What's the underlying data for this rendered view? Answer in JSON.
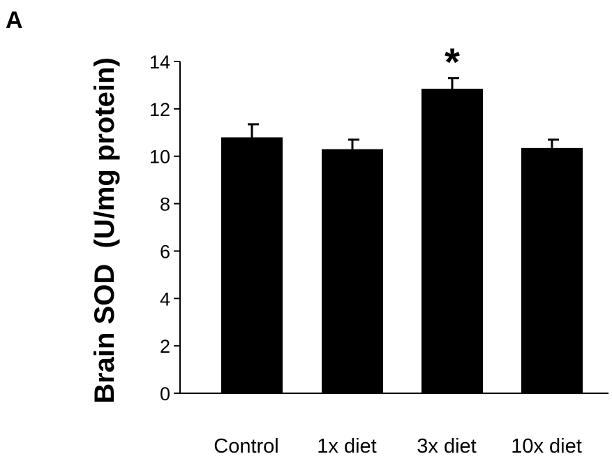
{
  "panel_label": "A",
  "chart_data": {
    "type": "bar",
    "title": "",
    "xlabel": "",
    "ylabel": "Brain SOD  (U/mg protein)",
    "categories": [
      "Control",
      "1x diet",
      "3x diet",
      "10x diet"
    ],
    "values": [
      10.8,
      10.3,
      12.85,
      10.35
    ],
    "error": [
      0.55,
      0.4,
      0.45,
      0.35
    ],
    "annotations": [
      "",
      "",
      "*",
      ""
    ],
    "ylim": [
      0,
      14
    ],
    "yticks": [
      0,
      2,
      4,
      6,
      8,
      10,
      12,
      14
    ],
    "grid": false,
    "legend": "none",
    "bar_color": "#000000"
  }
}
